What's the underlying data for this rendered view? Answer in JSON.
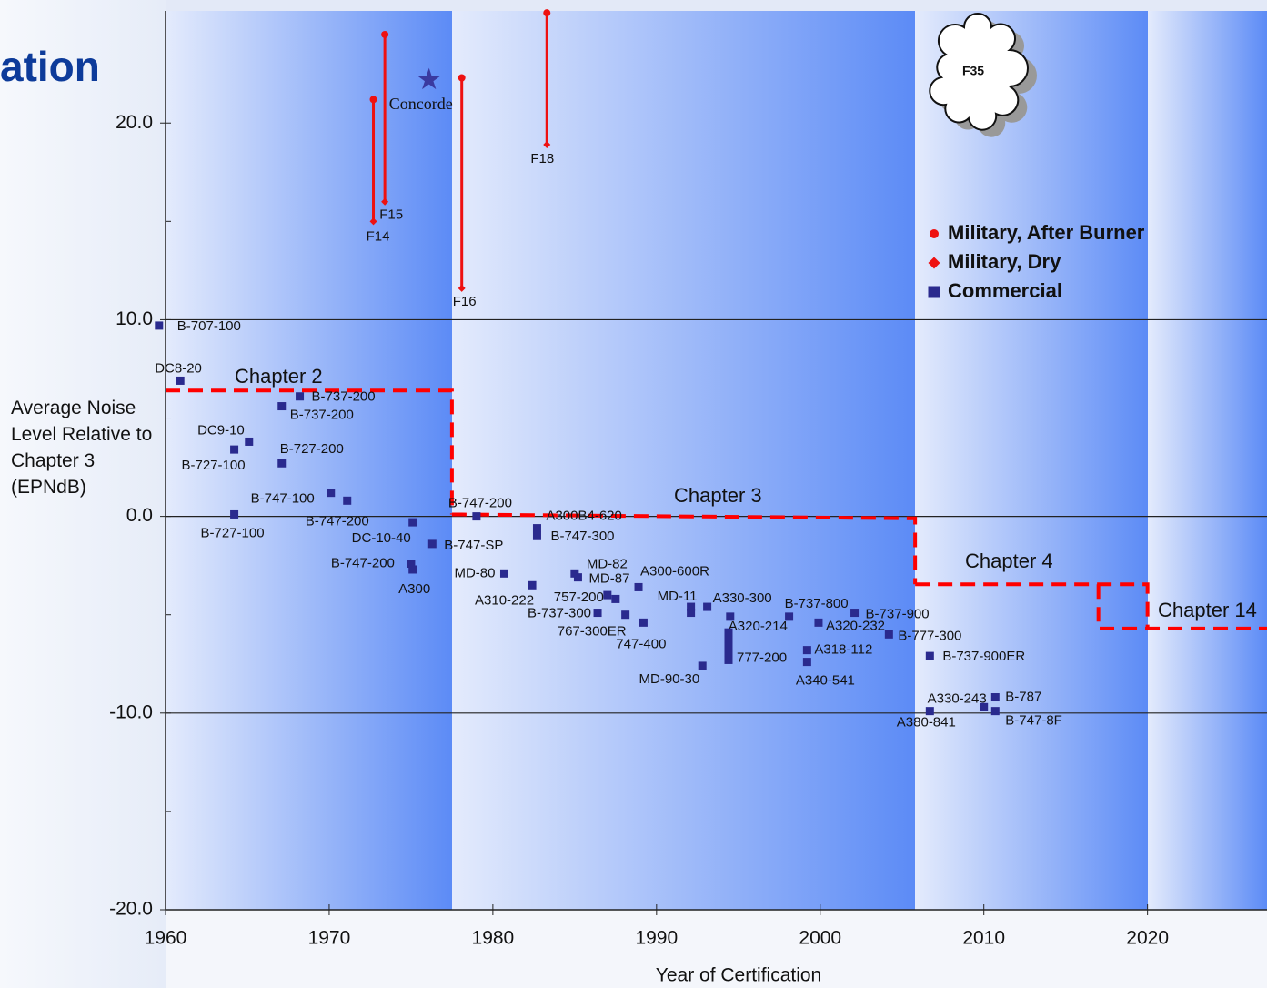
{
  "chart_data": {
    "type": "scatter",
    "title": "ation",
    "xlabel": "Year of Certification",
    "ylabel": "Average Noise Level Relative to Chapter 3 (EPNdB)",
    "xlim": [
      1960,
      2027.3
    ],
    "ylim": [
      -20,
      25.7
    ],
    "xticks": [
      1960,
      1970,
      1980,
      1990,
      2000,
      2010,
      2020
    ],
    "yticks": [
      {
        "value": 20,
        "label": "20.0"
      },
      {
        "value": 10,
        "label": "10.0"
      },
      {
        "value": 0,
        "label": "0.0"
      },
      {
        "value": -10,
        "label": "-10.0"
      },
      {
        "value": -20,
        "label": "-20.0"
      }
    ],
    "yticks_minor": [
      15,
      5,
      -5,
      -15
    ],
    "gridlines": [
      10,
      0,
      -10
    ],
    "series": [
      {
        "name": "Military, After Burner",
        "color": "#ee1111",
        "marker": "circle",
        "x": [
          1972.7,
          1973.4,
          1978.1,
          1983.3
        ],
        "values": [
          21.2,
          24.5,
          22.3,
          25.6
        ]
      },
      {
        "name": "Military, Dry",
        "color": "#ee1111",
        "marker": "diamond",
        "x": [
          1972.7,
          1973.4,
          1978.1,
          1983.3
        ],
        "values": [
          15.0,
          16.0,
          11.6,
          18.9
        ],
        "point_labels": [
          "F14",
          "F15",
          "F16",
          "F18"
        ]
      },
      {
        "name": "Commercial",
        "color": "#2a2a8e",
        "marker": "square",
        "x": [
          1959.6,
          1960.9,
          1968.2,
          1967.1,
          1965.1,
          1964.2,
          1967.1,
          1970.1,
          1971.1,
          1964.2,
          1975.1,
          1976.3,
          1975.0,
          1975.1,
          1979.0,
          1982.7,
          1982.7,
          1980.7,
          1982.4,
          1985.0,
          1985.2,
          1987.0,
          1987.5,
          1986.4,
          1988.1,
          1988.9,
          1989.2,
          1992.1,
          1992.1,
          1993.1,
          1992.8,
          1994.5,
          1994.4,
          1994.4,
          1994.4,
          1994.4,
          1994.4,
          1998.1,
          1999.9,
          1999.2,
          1999.2,
          2002.1,
          2004.2,
          2006.7,
          2010.0,
          2010.7,
          2006.7,
          2010.7
        ],
        "values": [
          9.7,
          6.9,
          6.1,
          5.6,
          3.8,
          3.4,
          2.7,
          1.2,
          0.8,
          0.1,
          -0.3,
          -1.4,
          -2.4,
          -2.7,
          0.0,
          -0.6,
          -1.0,
          -2.9,
          -3.5,
          -2.9,
          -3.1,
          -4.0,
          -4.2,
          -4.9,
          -5.0,
          -3.6,
          -5.4,
          -4.6,
          -4.9,
          -4.6,
          -7.6,
          -5.1,
          -5.9,
          -6.25,
          -6.6,
          -6.95,
          -7.3,
          -5.1,
          -5.4,
          -6.8,
          -7.4,
          -4.9,
          -6.0,
          -7.1,
          -9.7,
          -9.2,
          -9.9,
          -9.9
        ],
        "point_labels": [
          "B-707-100",
          "DC8-20",
          "B-737-200",
          "B-737-200",
          "DC9-10",
          "B-727-100",
          "B-727-200",
          "B-747-100",
          "B-747-200",
          "B-727-100",
          "DC-10-40",
          "B-747-SP",
          "B-747-200",
          "A300",
          "B-747-200",
          "A300B4-620",
          "B-747-300",
          "MD-80",
          "A310-222",
          "MD-82",
          "MD-87",
          "757-200",
          null,
          "B-737-300",
          "767-300ER",
          "A300-600R",
          "747-400",
          "MD-11",
          null,
          "A330-300",
          "MD-90-30",
          "A320-214",
          null,
          null,
          "777-200",
          null,
          null,
          "B-737-800",
          "A320-232",
          "A318-112",
          "A340-541",
          "B-737-900",
          "B-777-300",
          "B-737-900ER",
          "A330-243",
          "B-787",
          "A380-841",
          "B-747-8F"
        ]
      }
    ],
    "concorde": {
      "text": "Concorde",
      "x": 1976.1,
      "y": 22.2,
      "color": "#3a3aa0"
    },
    "cloud_label": "F35",
    "thresholds": [
      {
        "label": "Chapter 2",
        "color": "#ff0000",
        "x": [
          1960,
          1977.5,
          1977.5
        ],
        "y": [
          6.4,
          6.4,
          0.1
        ]
      },
      {
        "label": "Chapter 3",
        "color": "#ff0000",
        "x": [
          1977.5,
          2005.8,
          2005.8
        ],
        "y": [
          0.1,
          -0.1,
          -3.45
        ]
      },
      {
        "label": "Chapter 4",
        "color": "#ff0000",
        "x": [
          2005.8,
          2020,
          2020
        ],
        "y": [
          -3.45,
          -3.45,
          -5.7
        ]
      },
      {
        "label": "Chapter 14",
        "color": "#ff0000",
        "x": [
          2017,
          2017,
          2027.3
        ],
        "y": [
          -3.45,
          -5.7,
          -5.7
        ]
      }
    ]
  }
}
